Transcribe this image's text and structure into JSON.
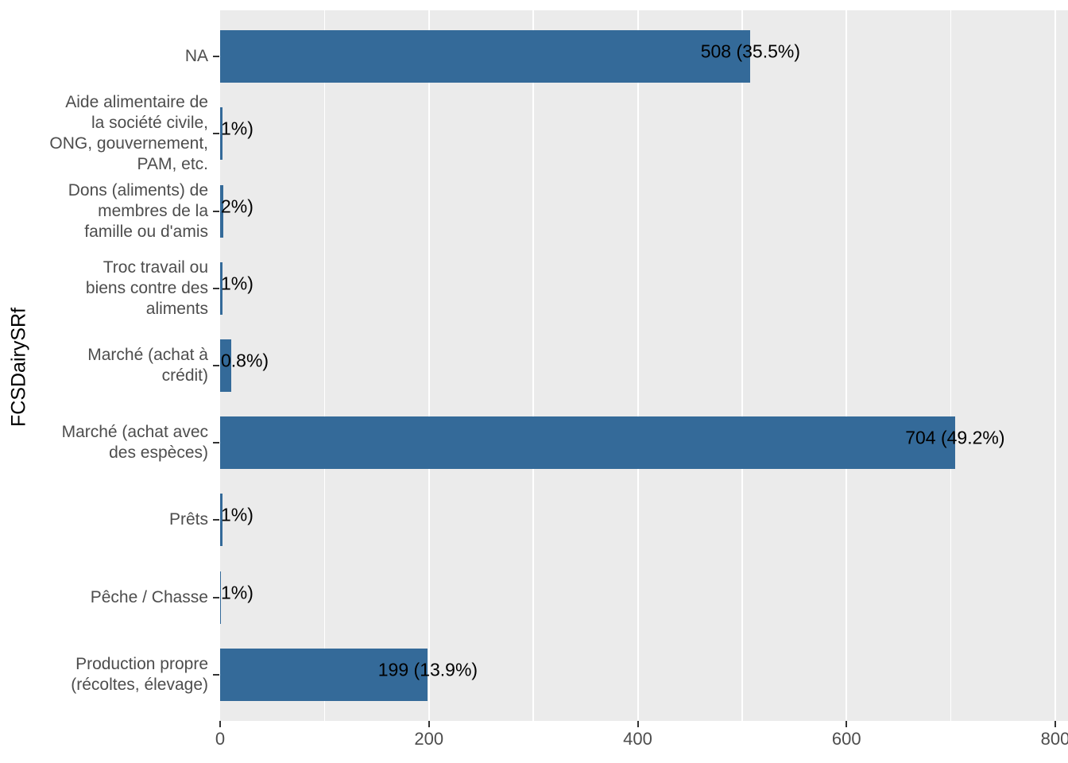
{
  "figure": {
    "y_axis_title": "FCSDairySRf",
    "x_axis": {
      "tick_labels": [
        "0",
        "200",
        "400",
        "600",
        "800"
      ],
      "tick_values": [
        0,
        200,
        400,
        600,
        800
      ],
      "minor_grid_values": [
        100,
        300,
        500,
        700
      ]
    },
    "colors": {
      "bar": "#346A99",
      "panel_background": "#EBEBEB",
      "gridline": "#FFFFFF",
      "axis_text": "#4D4D4D",
      "tick_mark": "#333333",
      "value_label": "#000000"
    },
    "bars": [
      {
        "category_lines": [
          "NA"
        ],
        "value": 508,
        "value_label": "508 (35.5%)",
        "label_clipped": false
      },
      {
        "category_lines": [
          "Aide alimentaire de",
          "la société civile,",
          "ONG, gouvernement,",
          "PAM, etc."
        ],
        "value": 2,
        "value_label": "1%)",
        "label_clipped": true
      },
      {
        "category_lines": [
          "Dons (aliments) de",
          "membres de la",
          "famille ou d'amis"
        ],
        "value": 3,
        "value_label": "2%)",
        "label_clipped": true
      },
      {
        "category_lines": [
          "Troc travail ou",
          "biens contre des",
          "aliments"
        ],
        "value": 2,
        "value_label": "1%)",
        "label_clipped": true
      },
      {
        "category_lines": [
          "Marché (achat à",
          "crédit)"
        ],
        "value": 11,
        "value_label": "0.8%)",
        "label_clipped": true
      },
      {
        "category_lines": [
          "Marché (achat avec",
          "des espèces)"
        ],
        "value": 704,
        "value_label": "704 (49.2%)",
        "label_clipped": false
      },
      {
        "category_lines": [
          "Prêts"
        ],
        "value": 2,
        "value_label": "1%)",
        "label_clipped": true
      },
      {
        "category_lines": [
          "Pêche / Chasse"
        ],
        "value": 1,
        "value_label": "1%)",
        "label_clipped": true
      },
      {
        "category_lines": [
          "Production propre",
          "(récoltes, élevage)"
        ],
        "value": 199,
        "value_label": "199 (13.9%)",
        "label_clipped": false
      }
    ]
  },
  "chart_data": {
    "type": "bar",
    "orientation": "horizontal",
    "title": "",
    "xlabel": "",
    "ylabel": "FCSDairySRf",
    "categories": [
      "NA",
      "Aide alimentaire de la société civile, ONG, gouvernement, PAM, etc.",
      "Dons (aliments) de membres de la famille ou d'amis",
      "Troc travail ou biens contre des aliments",
      "Marché (achat à crédit)",
      "Marché (achat avec des espèces)",
      "Prêts",
      "Pêche / Chasse",
      "Production propre (récoltes, élevage)"
    ],
    "values": [
      508,
      2,
      3,
      2,
      11,
      704,
      2,
      1,
      199
    ],
    "visible_bar_labels": [
      "508 (35.5%)",
      "1%)",
      "2%)",
      "1%)",
      "0.8%)",
      "704 (49.2%)",
      "1%)",
      "1%)",
      "199 (13.9%)"
    ],
    "values_note": "Labels of tiny bars are clipped at the panel edge; their values are estimated from bar widths and visible percentage fragments",
    "xlim": [
      0,
      812
    ],
    "x_ticks": [
      0,
      200,
      400,
      600,
      800
    ],
    "grid": true,
    "legend": false,
    "bar_color": "#346A99",
    "panel_background": "#EBEBEB"
  }
}
